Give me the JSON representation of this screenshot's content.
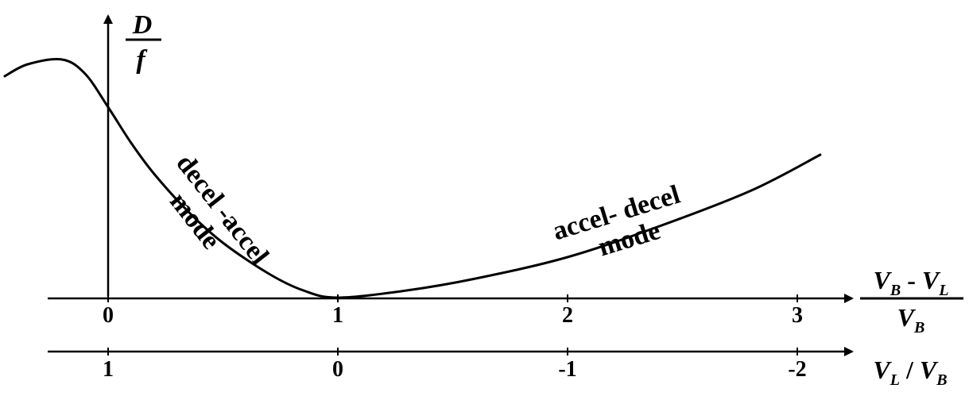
{
  "chart_data": {
    "type": "line",
    "y_axis_label": {
      "numerator": "D",
      "denominator": "f"
    },
    "x_axis_primary": {
      "label": {
        "numerator": [
          "V",
          "B",
          " - ",
          "V",
          "L"
        ],
        "denominator": [
          "V",
          "B"
        ]
      },
      "ticks": [
        {
          "label": "0",
          "value": 0
        },
        {
          "label": "1",
          "value": 1
        },
        {
          "label": "2",
          "value": 2
        },
        {
          "label": "3",
          "value": 3
        }
      ]
    },
    "x_axis_secondary": {
      "label": [
        "V",
        "L",
        " / ",
        "V",
        "B"
      ],
      "ticks": [
        {
          "label": "1",
          "value": 0
        },
        {
          "label": "0",
          "value": 1
        },
        {
          "label": "-1",
          "value": 2
        },
        {
          "label": "-2",
          "value": 3
        }
      ]
    },
    "annotations": [
      {
        "lines": [
          "decel -accel",
          "mode"
        ],
        "region": "left descending branch"
      },
      {
        "lines": [
          "accel- decel",
          "mode"
        ],
        "region": "right ascending branch"
      }
    ],
    "curve": {
      "x": [
        -0.45,
        -0.35,
        -0.2,
        -0.1,
        0.0,
        0.1,
        0.2,
        0.35,
        0.5,
        0.7,
        0.85,
        1.0,
        1.3,
        1.6,
        2.0,
        2.4,
        2.8,
        3.1
      ],
      "y": [
        0.93,
        0.98,
        1.0,
        0.94,
        0.8,
        0.65,
        0.52,
        0.36,
        0.23,
        0.1,
        0.03,
        0.0,
        0.03,
        0.08,
        0.17,
        0.3,
        0.45,
        0.6
      ]
    }
  }
}
